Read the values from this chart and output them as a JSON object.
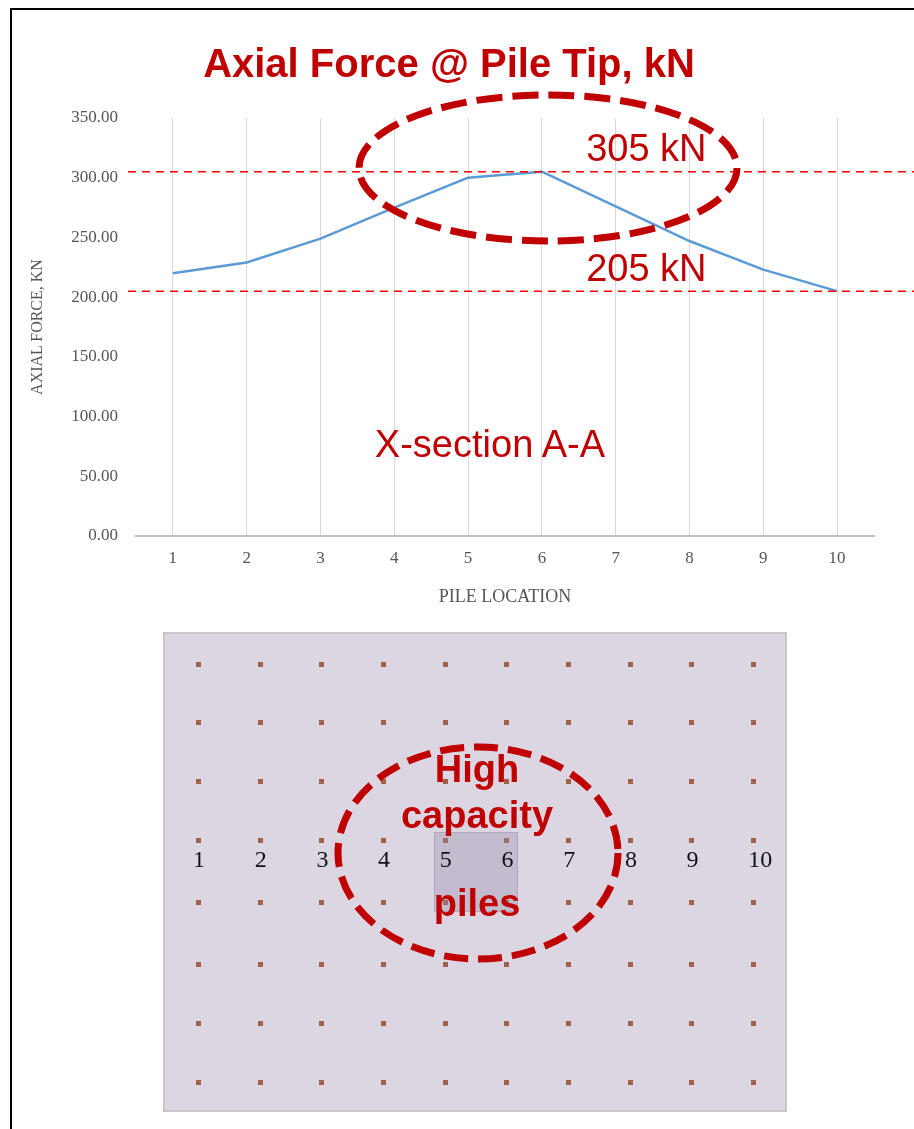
{
  "chart_data": [
    {
      "type": "line",
      "title": "Axial Force @ Pile Tip, kN",
      "xlabel": "PILE LOCATION",
      "ylabel": "AXIAL FORCE, KN",
      "categories": [
        "1",
        "2",
        "3",
        "4",
        "5",
        "6",
        "7",
        "8",
        "9",
        "10"
      ],
      "series": [
        {
          "color": "#5b9bd5",
          "values": [
            220,
            229,
            249,
            275,
            300,
            305,
            276,
            247,
            223,
            205
          ]
        }
      ],
      "ylim": [
        0,
        350
      ],
      "yticks": [
        {
          "value": 0,
          "label": "0.00"
        },
        {
          "value": 50,
          "label": "50.00"
        },
        {
          "value": 100,
          "label": "100.00"
        },
        {
          "value": 150,
          "label": "150.00"
        },
        {
          "value": 200,
          "label": "200.00"
        },
        {
          "value": 250,
          "label": "250.00"
        },
        {
          "value": 300,
          "label": "300.00"
        },
        {
          "value": 350,
          "label": "350.00"
        }
      ],
      "grid": "x",
      "marker": "none",
      "line_style": "solid",
      "ref_lines": [
        {
          "axis": "y",
          "value": 305,
          "label": "305 kN",
          "color": "#ff0000",
          "line_style": "dashed"
        },
        {
          "axis": "y",
          "value": 205,
          "label": "205 kN",
          "color": "#ff0000",
          "line_style": "dashed"
        }
      ],
      "annotations": [
        "X-section A-A"
      ]
    },
    {
      "type": "other",
      "annotations": [
        "1 2 3 4 5 6 7 8 9 10",
        "High capacity piles"
      ]
    }
  ]
}
